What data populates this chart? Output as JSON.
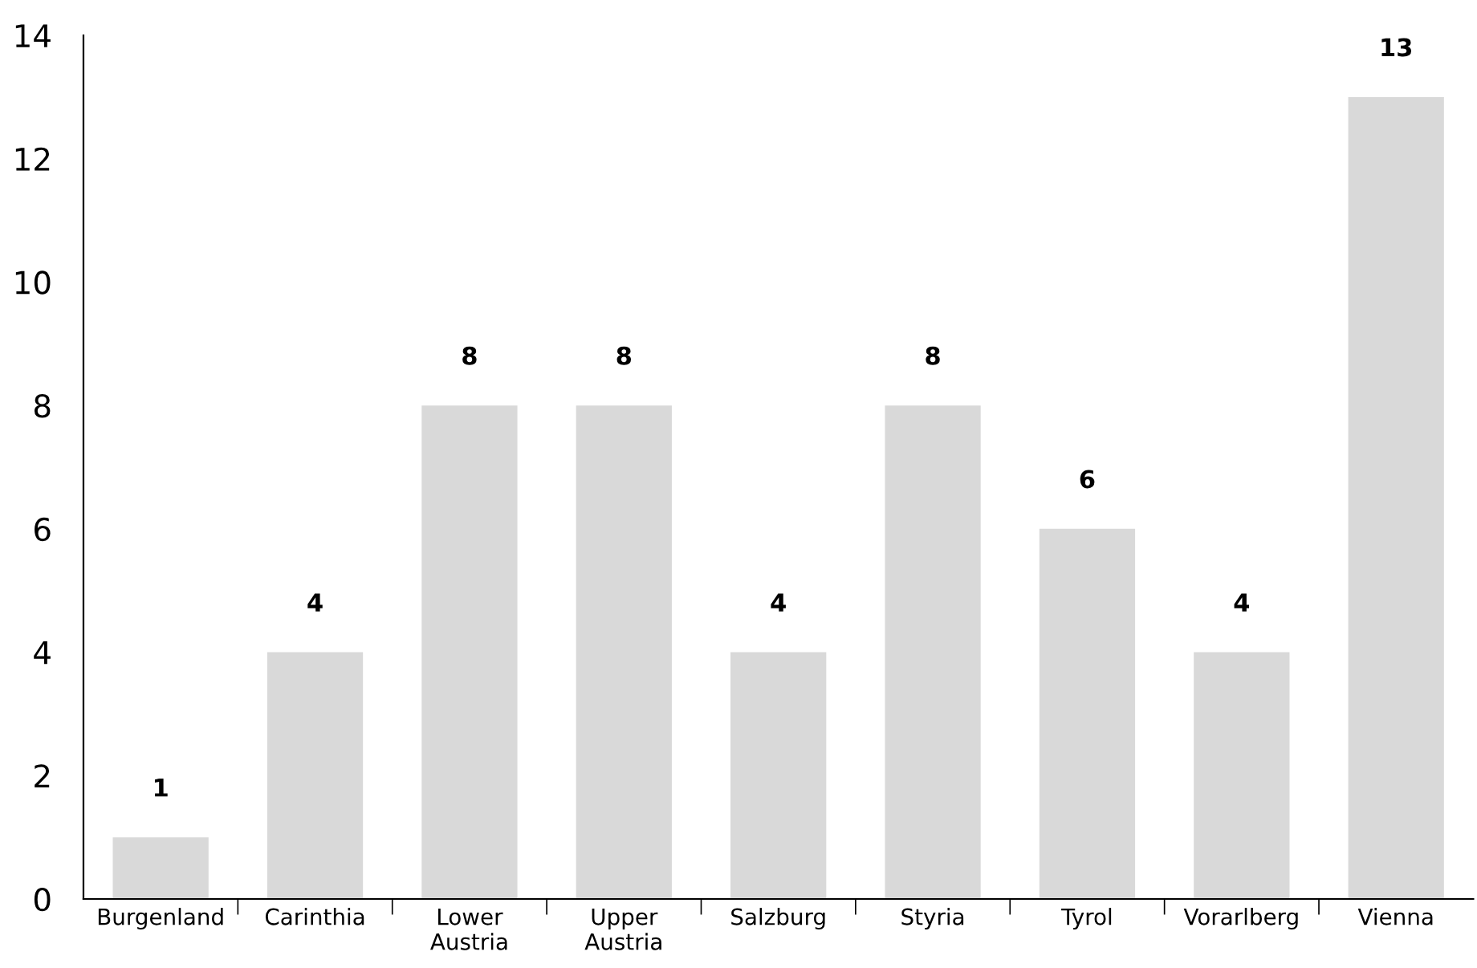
{
  "chart_data": {
    "type": "bar",
    "categories": [
      "Burgenland",
      "Carinthia",
      "Lower\nAustria",
      "Upper\nAustria",
      "Salzburg",
      "Styria",
      "Tyrol",
      "Vorarlberg",
      "Vienna"
    ],
    "values": [
      1,
      4,
      8,
      8,
      4,
      8,
      6,
      4,
      13
    ],
    "color": "#d9d9d9",
    "ylim": [
      0,
      14
    ],
    "yticks": [
      0,
      2,
      4,
      6,
      8,
      10,
      12,
      14
    ],
    "grid": false,
    "legend": false,
    "data_labels": true
  }
}
